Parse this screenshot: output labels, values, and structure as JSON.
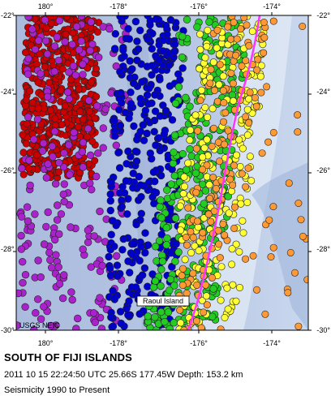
{
  "map": {
    "region_title": "SOUTH OF FIJI ISLANDS",
    "event_line": "2011 10 15 22:24:50 UTC 25.66S 177.45W Depth: 153.2 km",
    "subtitle": "Seismicity 1990 to Present",
    "credit": "USGS NEIC",
    "place_label": "Raoul Island",
    "lon_ticks": [
      "180°",
      "-178°",
      "-176°",
      "-174°"
    ],
    "lat_ticks": [
      "-22°",
      "-24°",
      "-26°",
      "-28°",
      "-30°"
    ],
    "lon_range": [
      179,
      187
    ],
    "lat_range": [
      -30,
      -22
    ],
    "depth_colors": {
      "0-33 km": "#ff9933",
      "33-70 km": "#ffff33",
      "70-150 km": "#22cc22",
      "150-300 km": "#0000cc",
      "300-500 km": "#aa22cc",
      "500-800 km": "#cc0000"
    },
    "colors": {
      "plate_boundary": "#ff33ff",
      "ocean_light": "#c8d8ee",
      "ocean_deep": "#7f9ac8"
    }
  }
}
